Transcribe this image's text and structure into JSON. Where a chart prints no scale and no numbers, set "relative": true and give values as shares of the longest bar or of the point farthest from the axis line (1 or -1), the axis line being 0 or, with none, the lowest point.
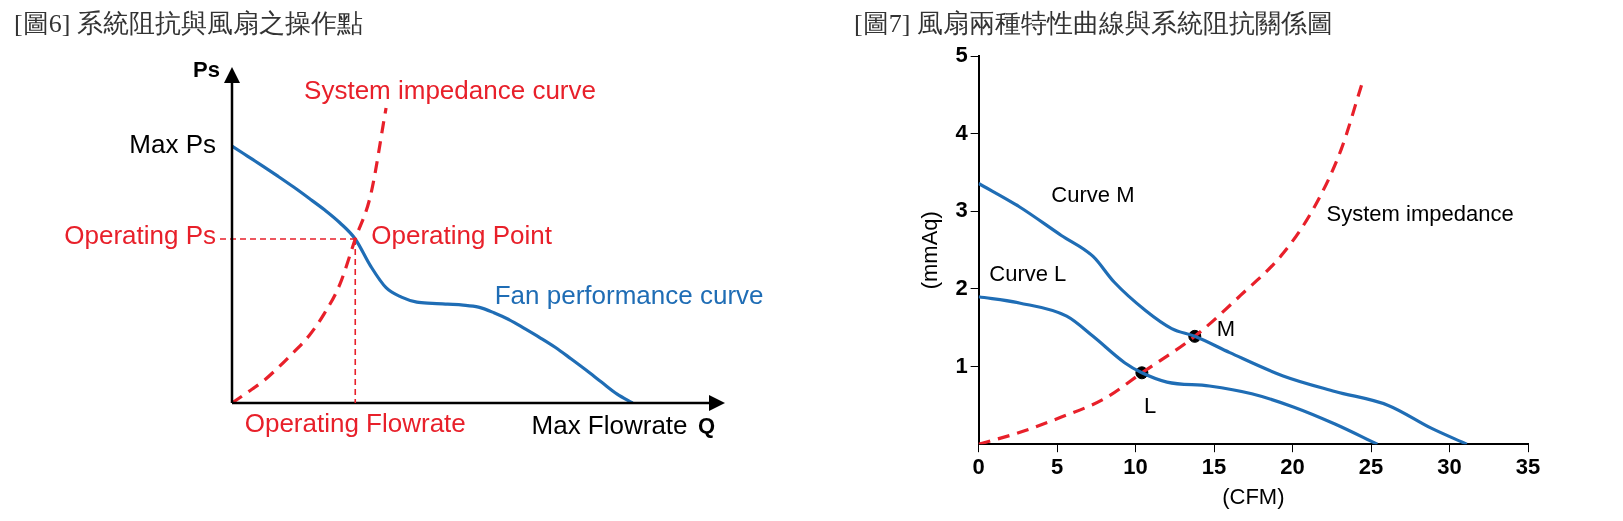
{
  "chart_data": [
    {
      "type": "line",
      "title": "[圖6] 系統阻抗與風扇之操作點",
      "xlabel": "Q",
      "ylabel": "Ps",
      "relative": true,
      "legend": false,
      "grid": false,
      "categories": [
        null,
        null,
        null,
        null,
        null,
        null,
        null,
        null,
        null,
        null,
        null,
        null,
        null,
        null,
        null,
        null,
        null,
        null,
        null,
        null,
        null,
        null,
        null,
        null,
        null,
        null,
        null,
        null,
        null,
        null,
        null,
        null,
        null
      ],
      "series": [
        {
          "name": "System impedance curve",
          "color": "#e8202a",
          "line_style": "dashed",
          "values": [
            0,
            0.036,
            0.073,
            0.12,
            0.172,
            0.228,
            0.304,
            0.402,
            0.556,
            0.705,
            1,
            null,
            null,
            null,
            null,
            null,
            null,
            null,
            null,
            null,
            null,
            null,
            null,
            null,
            null,
            null,
            null,
            null,
            null,
            null,
            null,
            null,
            null
          ]
        },
        {
          "name": "Fan performance curve",
          "color": "#1f6db5",
          "line_style": "solid",
          "values": [
            0.871,
            0.837,
            0.803,
            0.768,
            0.732,
            0.694,
            0.655,
            0.611,
            0.556,
            0.464,
            0.391,
            0.359,
            0.342,
            0.338,
            0.335,
            0.332,
            0.325,
            0.306,
            0.282,
            0.252,
            0.221,
            0.188,
            0.15,
            0.111,
            0.07,
            0.03,
            0,
            null,
            null,
            null,
            null,
            null,
            null
          ]
        }
      ],
      "ref_lines": [
        {
          "axis": "y",
          "value": 0.556,
          "label": "Operating Ps",
          "color": "#e8202a",
          "line_style": "dashed"
        }
      ],
      "annotations": [
        "Max Ps",
        "Operating Point",
        "Max Flowrate",
        "Operating Flowrate"
      ]
    },
    {
      "type": "line",
      "title": "[圖7] 風扇兩種特性曲線與系統阻抗關係圖",
      "xlabel": "(CFM)",
      "ylabel": "(mmAq)",
      "legend": false,
      "grid": false,
      "xlim": [
        0,
        35
      ],
      "xticks": [
        0,
        5,
        10,
        15,
        20,
        25,
        30,
        35
      ],
      "ylim": [
        0,
        5
      ],
      "yticks": [
        1,
        2,
        3,
        4,
        5
      ],
      "series": [
        {
          "name": "Curve M",
          "color": "#1f6db5",
          "line_style": "solid",
          "x": [
            0,
            2.59,
            5.27,
            7.29,
            8.63,
            10.65,
            12.3,
            13.77,
            16,
            19.4,
            22.7,
            26.1,
            28.8,
            31.1
          ],
          "values": [
            3.36,
            3.06,
            2.69,
            2.42,
            2.09,
            1.72,
            1.49,
            1.39,
            1.18,
            0.88,
            0.68,
            0.5,
            0.21,
            0
          ]
        },
        {
          "name": "Curve L",
          "color": "#1f6db5",
          "line_style": "solid",
          "x": [
            0,
            2.59,
            5.61,
            7.29,
            9.3,
            10.4,
            12,
            14.7,
            17.4,
            20.05,
            22.7,
            25.4
          ],
          "values": [
            1.9,
            1.82,
            1.65,
            1.39,
            1.05,
            0.92,
            0.8,
            0.75,
            0.65,
            0.48,
            0.26,
            0
          ]
        },
        {
          "name": "System impedance",
          "color": "#e8202a",
          "line_style": "dashed",
          "x": [
            0,
            2.59,
            5.27,
            7.96,
            10.4,
            13.77,
            16.7,
            19.4,
            21.4,
            23.1,
            24.4
          ],
          "values": [
            0,
            0.15,
            0.35,
            0.58,
            0.92,
            1.39,
            1.92,
            2.46,
            3.06,
            3.8,
            4.63
          ]
        },
        {
          "type": "scatter",
          "color": "#000000",
          "marker": "circle",
          "x": [
            13.77,
            10.4
          ],
          "values": [
            1.39,
            0.92
          ]
        }
      ],
      "annotations": [
        {
          "text": "M",
          "x": 13.77,
          "y": 1.39
        },
        {
          "text": "L",
          "x": 10.4,
          "y": 0.92
        }
      ]
    }
  ]
}
